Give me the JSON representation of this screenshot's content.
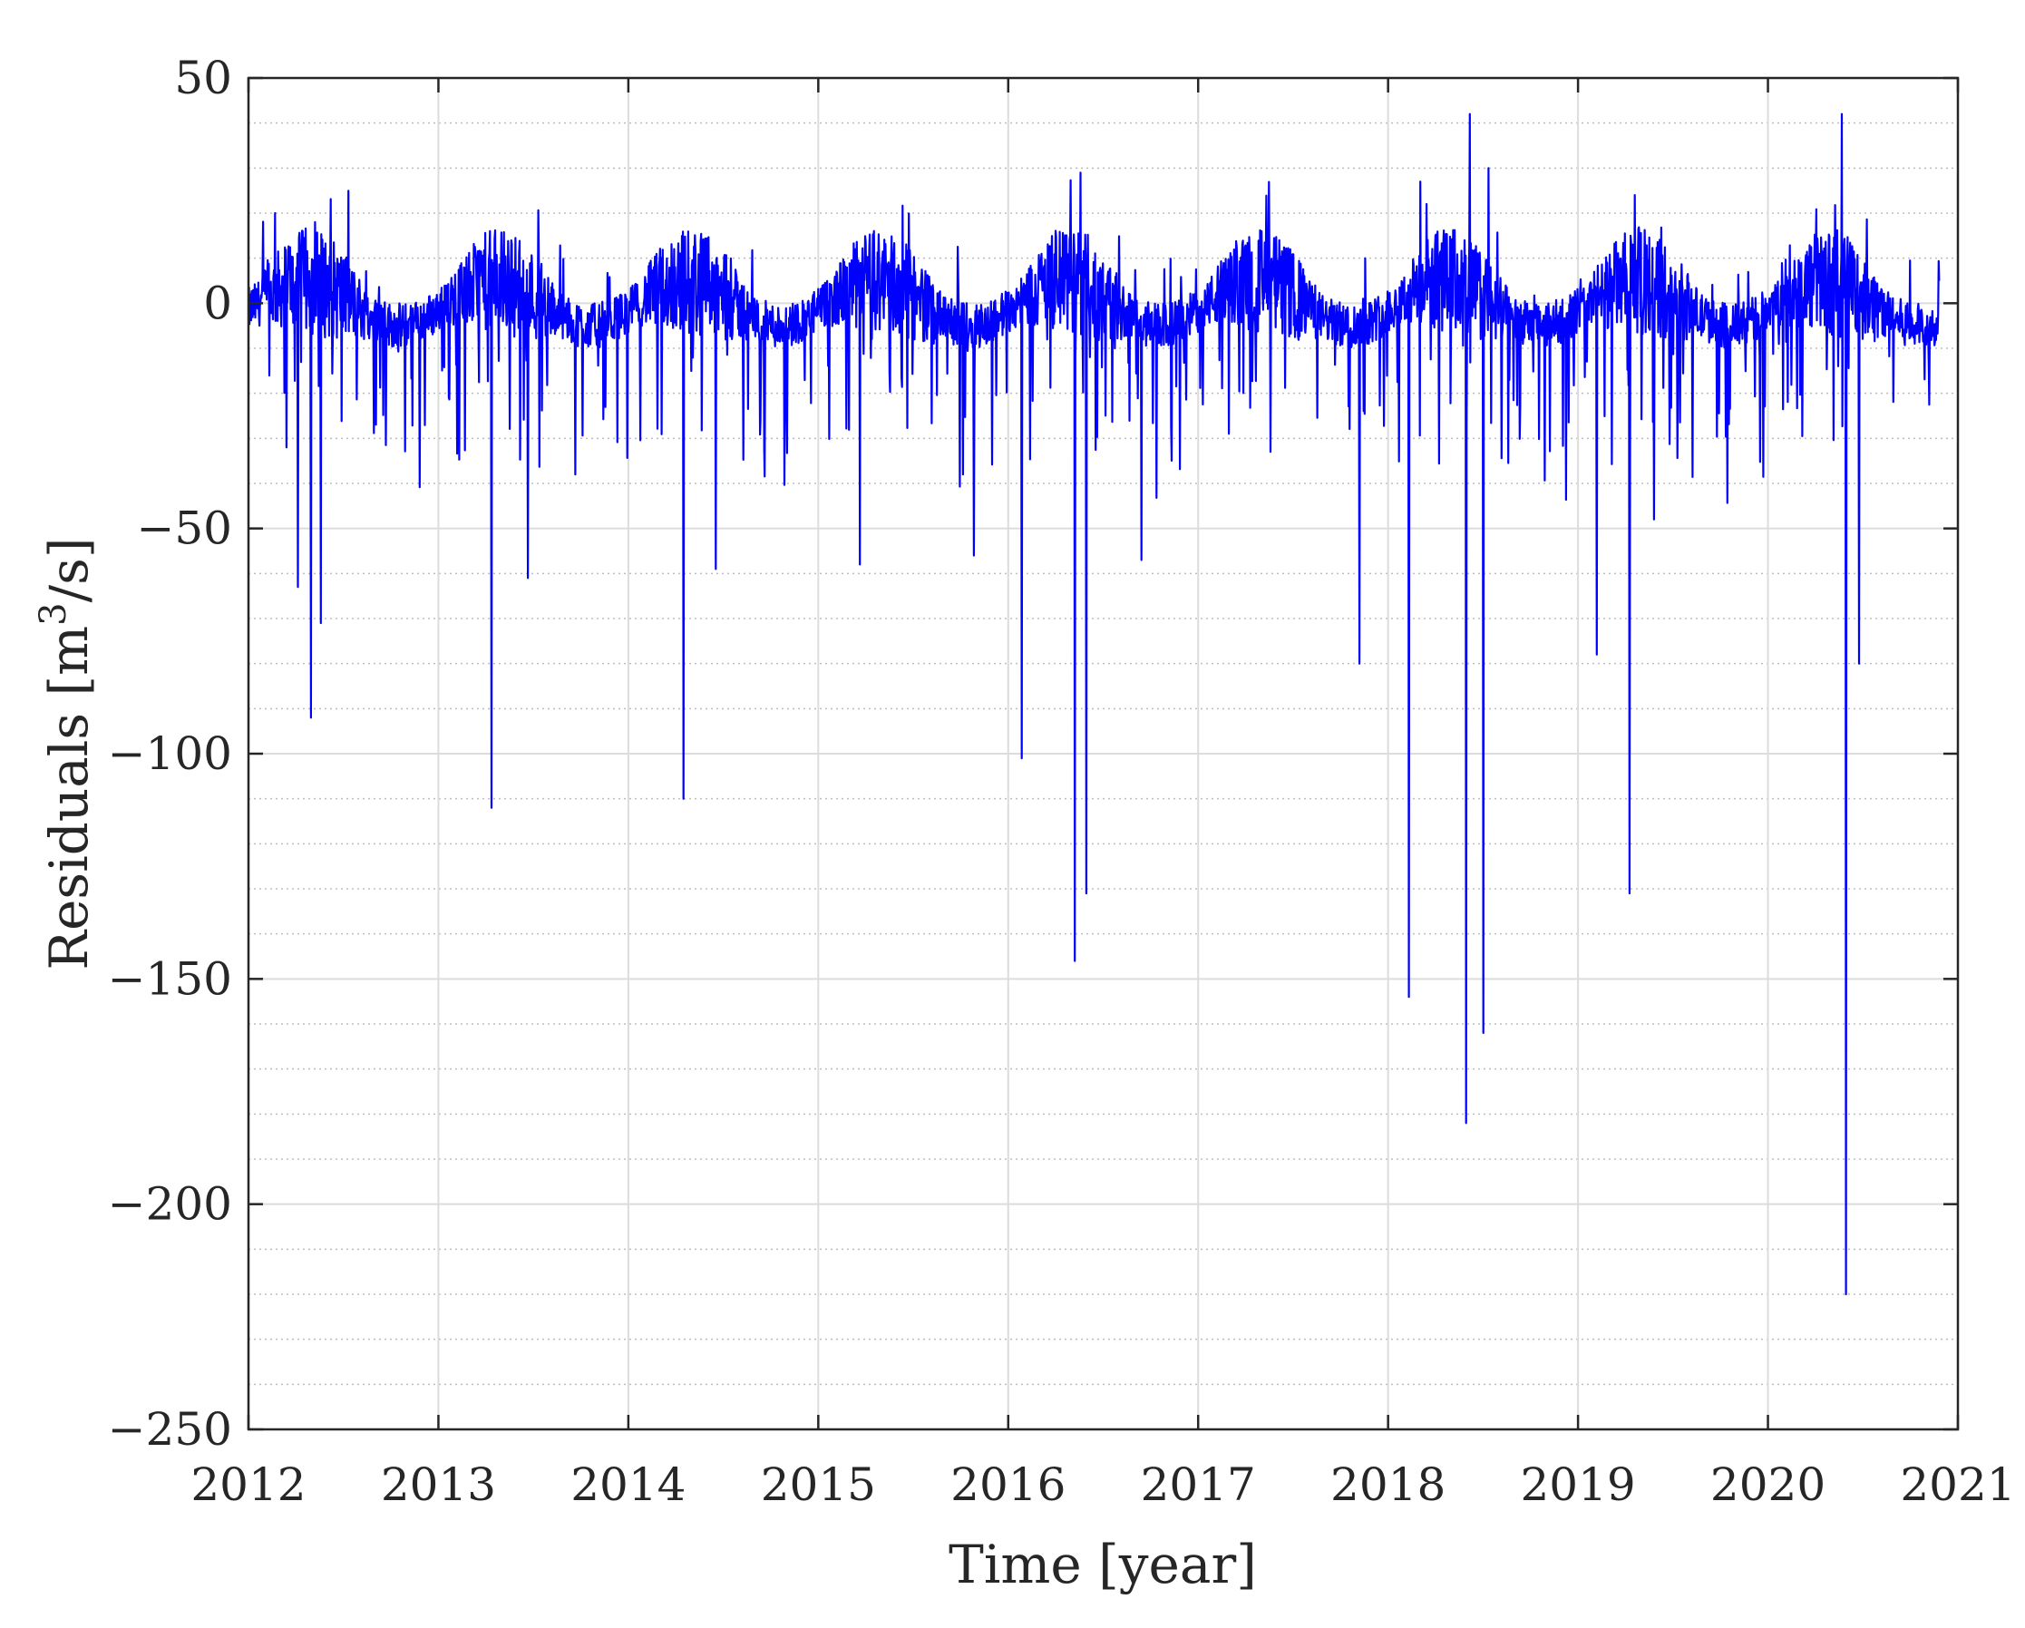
{
  "chart_data": {
    "type": "line",
    "title": "",
    "xlabel": "Time [year]",
    "ylabel_main": "Residuals [m",
    "ylabel_sup": "3",
    "ylabel_tail": "/s]",
    "xlim": [
      2012,
      2021
    ],
    "ylim": [
      -250,
      50
    ],
    "x_ticks": [
      2012,
      2013,
      2014,
      2015,
      2016,
      2017,
      2018,
      2019,
      2020,
      2021
    ],
    "x_tick_labels": [
      "2012",
      "2013",
      "2014",
      "2015",
      "2016",
      "2017",
      "2018",
      "2019",
      "2020",
      "2021"
    ],
    "y_ticks": [
      50,
      0,
      -50,
      -100,
      -150,
      -200,
      -250
    ],
    "y_tick_labels": [
      "50",
      "0",
      "−50",
      "−100",
      "−150",
      "−200",
      "−250"
    ],
    "grid": true,
    "minor_grid": true,
    "legend": "none",
    "line_color": "#0000ff",
    "series": [
      {
        "description": "Daily residual series; values below are the key extremes read off the plot (year, m3/s); remaining days fluctuate between about -15 and +15.",
        "x": [
          2012.0,
          2012.14,
          2012.2,
          2012.26,
          2012.33,
          2012.35,
          2012.38,
          2013.28,
          2013.47,
          2013.72,
          2014.29,
          2014.46,
          2015.22,
          2015.82,
          2016.07,
          2016.35,
          2016.38,
          2016.41,
          2016.7,
          2017.85,
          2017.88,
          2018.11,
          2018.17,
          2018.41,
          2018.43,
          2018.5,
          2018.53,
          2019.1,
          2019.27,
          2019.3,
          2019.4,
          2020.41,
          2020.39,
          2020.48,
          2020.9
        ],
        "y": [
          3,
          20,
          -32,
          -63,
          -92,
          18,
          -71,
          -112,
          -61,
          -38,
          -110,
          -59,
          -58,
          -56,
          -101,
          -146,
          29,
          -131,
          -57,
          -80,
          10,
          -154,
          27,
          -182,
          42,
          -162,
          30,
          -78,
          -131,
          24,
          -48,
          -220,
          42,
          -80,
          5
        ]
      }
    ]
  }
}
